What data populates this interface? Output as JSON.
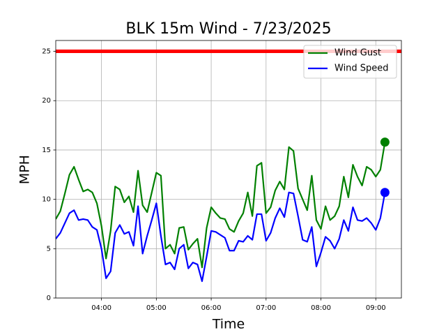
{
  "chart_data": {
    "type": "line",
    "title": "BLK 15m Wind - 7/23/2025",
    "x_label": "Time",
    "y_label": "MPH",
    "x": [
      "03:10",
      "03:15",
      "03:20",
      "03:25",
      "03:30",
      "03:35",
      "03:40",
      "03:45",
      "03:50",
      "03:55",
      "04:00",
      "04:05",
      "04:10",
      "04:15",
      "04:20",
      "04:25",
      "04:30",
      "04:35",
      "04:40",
      "04:45",
      "04:50",
      "04:55",
      "05:00",
      "05:05",
      "05:10",
      "05:15",
      "05:20",
      "05:25",
      "05:30",
      "05:35",
      "05:40",
      "05:45",
      "05:50",
      "05:55",
      "06:00",
      "06:05",
      "06:10",
      "06:15",
      "06:20",
      "06:25",
      "06:30",
      "06:35",
      "06:40",
      "06:45",
      "06:50",
      "06:55",
      "07:00",
      "07:05",
      "07:10",
      "07:15",
      "07:20",
      "07:25",
      "07:30",
      "07:35",
      "07:40",
      "07:45",
      "07:50",
      "07:55",
      "08:00",
      "08:05",
      "08:10",
      "08:15",
      "08:20",
      "08:25",
      "08:30",
      "08:35",
      "08:40",
      "08:45",
      "08:50",
      "08:55",
      "09:00",
      "09:05",
      "09:10"
    ],
    "series": [
      {
        "name": "Wind Gust",
        "color": "#008000",
        "values": [
          8.0,
          8.8,
          10.6,
          12.5,
          13.3,
          12.0,
          10.8,
          11.0,
          10.7,
          9.6,
          7.3,
          4.0,
          6.8,
          11.3,
          11.0,
          9.7,
          10.3,
          8.7,
          12.9,
          9.4,
          8.7,
          10.7,
          12.7,
          12.4,
          5.0,
          5.4,
          4.5,
          7.1,
          7.2,
          4.9,
          5.5,
          6.0,
          3.1,
          7.1,
          9.2,
          8.6,
          8.1,
          8.0,
          7.0,
          6.7,
          7.8,
          8.6,
          10.7,
          8.3,
          13.4,
          13.7,
          8.6,
          9.2,
          10.9,
          11.8,
          11.0,
          15.3,
          14.9,
          11.1,
          10.0,
          8.9,
          12.4,
          7.9,
          7.0,
          9.3,
          7.9,
          8.3,
          9.3,
          12.3,
          10.2,
          13.5,
          12.3,
          11.4,
          13.3,
          13.0,
          12.3,
          13.0,
          15.8
        ]
      },
      {
        "name": "Wind Speed",
        "color": "#0000ff",
        "values": [
          6.0,
          6.6,
          7.6,
          8.6,
          8.9,
          7.9,
          8.0,
          7.9,
          7.2,
          6.9,
          5.0,
          2.0,
          2.7,
          6.6,
          7.4,
          6.5,
          6.7,
          5.3,
          9.3,
          4.5,
          6.3,
          7.9,
          9.6,
          6.3,
          3.4,
          3.6,
          2.9,
          5.0,
          5.4,
          3.0,
          3.6,
          3.4,
          1.7,
          4.2,
          6.8,
          6.7,
          6.4,
          6.1,
          4.8,
          4.8,
          5.8,
          5.7,
          6.3,
          5.9,
          8.5,
          8.5,
          5.8,
          6.6,
          8.1,
          9.1,
          8.2,
          10.7,
          10.6,
          8.3,
          5.9,
          5.7,
          7.2,
          3.2,
          4.6,
          6.2,
          5.8,
          5.0,
          6.0,
          7.9,
          6.8,
          9.2,
          7.9,
          7.8,
          8.1,
          7.6,
          6.9,
          8.1,
          10.7
        ]
      }
    ],
    "reference_line": {
      "value": 25,
      "color": "#ff0000"
    },
    "end_marker": true,
    "xlim": [
      "03:10",
      "09:28"
    ],
    "xticks": [
      "04:00",
      "05:00",
      "06:00",
      "07:00",
      "08:00",
      "09:00"
    ],
    "ylim": [
      0,
      26.1
    ],
    "yticks": [
      0,
      5,
      10,
      15,
      20,
      25
    ],
    "grid": true,
    "legend": "upper right"
  }
}
